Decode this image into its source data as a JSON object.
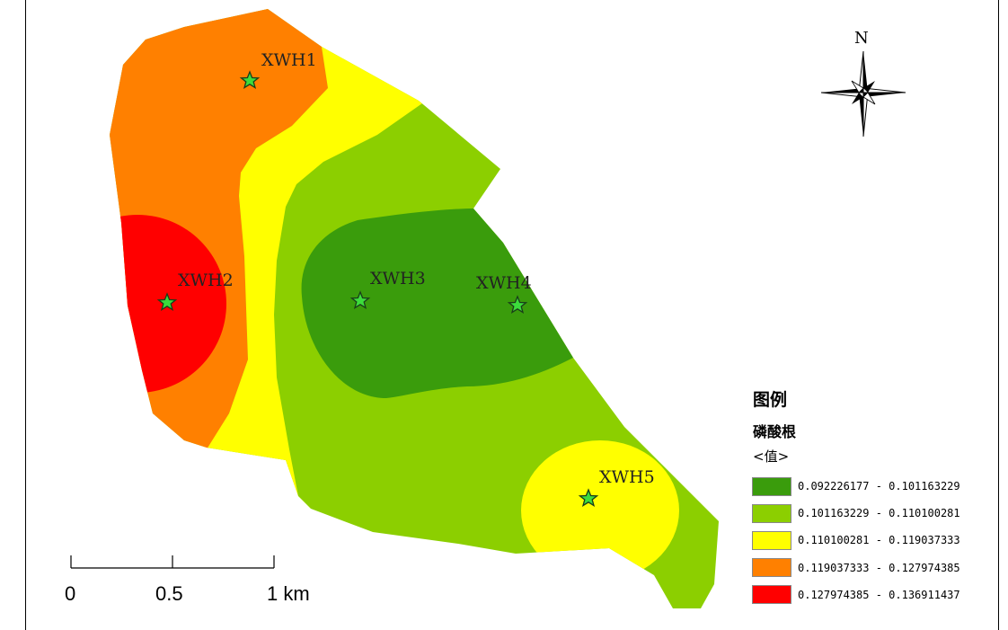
{
  "map": {
    "sites": [
      {
        "label": "XWH1"
      },
      {
        "label": "XWH2"
      },
      {
        "label": "XWH3"
      },
      {
        "label": "XWH4"
      },
      {
        "label": "XWH5"
      }
    ],
    "colors": {
      "class1": "#3a9c0c",
      "class2": "#8ccf00",
      "class3": "#ffff00",
      "class4": "#ff8000",
      "class5": "#ff0000",
      "marker": "#3cdc3c"
    }
  },
  "north_arrow": {
    "letter": "N"
  },
  "legend": {
    "title": "图例",
    "layer": "磷酸根",
    "field": "<值>",
    "classes": [
      {
        "range": "0.092226177 - 0.101163229",
        "color": "#3a9c0c"
      },
      {
        "range": "0.101163229 - 0.110100281",
        "color": "#8ccf00"
      },
      {
        "range": "0.110100281 - 0.119037333",
        "color": "#ffff00"
      },
      {
        "range": "0.119037333 - 0.127974385",
        "color": "#ff8000"
      },
      {
        "range": "0.127974385 - 0.136911437",
        "color": "#ff0000"
      }
    ]
  },
  "scale_bar": {
    "tick_labels": [
      "0",
      "0.5",
      "1 km"
    ]
  }
}
